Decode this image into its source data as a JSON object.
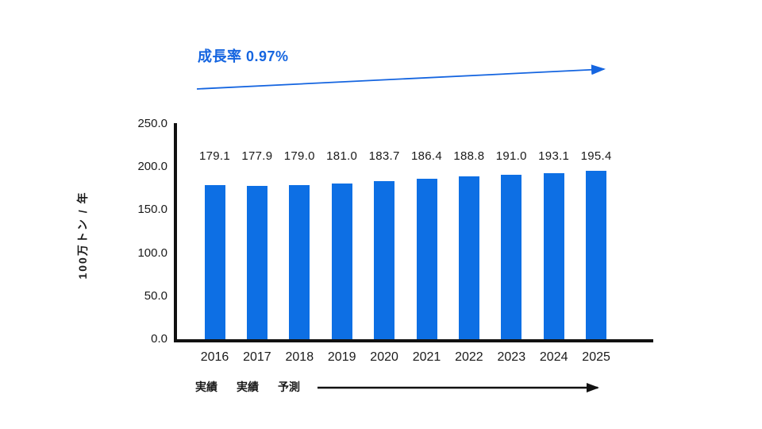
{
  "page": {
    "background": "#ffffff",
    "accent_color": "#1565e0",
    "axis_color": "#111111"
  },
  "chart_data": {
    "type": "bar",
    "title": "",
    "categories": [
      "2016",
      "2017",
      "2018",
      "2019",
      "2020",
      "2021",
      "2022",
      "2023",
      "2024",
      "2025"
    ],
    "values": [
      179.1,
      177.9,
      179.0,
      181.0,
      183.7,
      186.4,
      188.8,
      191.0,
      193.1,
      195.4
    ],
    "data_labels": [
      "179.1",
      "177.9",
      "179.0",
      "181.0",
      "183.7",
      "186.4",
      "188.8",
      "191.0",
      "193.1",
      "195.4"
    ],
    "xlabel": "",
    "ylabel": "100万トン / 年",
    "ylim": [
      0,
      250
    ],
    "ytick_values": [
      0,
      50,
      100,
      150,
      200,
      250
    ],
    "ytick_labels": [
      "0.0",
      "50.0",
      "100.0",
      "150.0",
      "200.0",
      "250.0"
    ],
    "grid": false,
    "legend": "none",
    "bar_color": "#0d6fe4",
    "annotations": {
      "growth_rate": "成長率 0.97%",
      "growth_arrow_direction": "up-right",
      "period": [
        "実績",
        "実績",
        "予測"
      ],
      "period_arrow_direction": "right"
    }
  }
}
